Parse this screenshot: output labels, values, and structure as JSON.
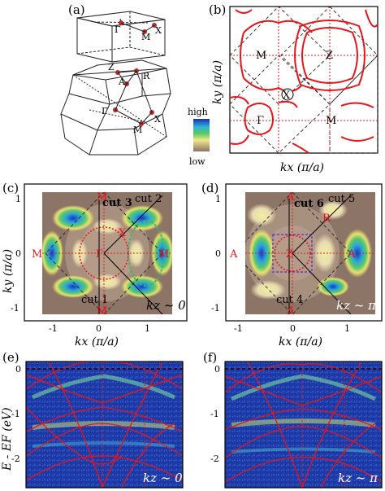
{
  "panels": {
    "a": {
      "label": "(a)"
    },
    "b": {
      "label": "(b)"
    },
    "c": {
      "label": "(c)"
    },
    "d": {
      "label": "(d)"
    },
    "e": {
      "label": "(e)"
    },
    "f": {
      "label": "(f)"
    }
  },
  "bz": {
    "top_points": [
      "Γ",
      "M",
      "X"
    ],
    "bottom_points": [
      "Z",
      "R",
      "A",
      "Γ",
      "M",
      "X"
    ]
  },
  "colorbar": {
    "high": "high",
    "low": "low"
  },
  "panel_b": {
    "xlabel": "kx (π/a)",
    "ylabel": "ky (π/a)",
    "points": [
      "M",
      "Z",
      "X",
      "Γ",
      "M"
    ]
  },
  "panel_c": {
    "points": [
      "M",
      "M",
      "M",
      "M",
      "X",
      "Γ"
    ],
    "cuts": [
      "cut 3",
      "cut 2",
      "cut 1"
    ],
    "kz": "kz ~ 0",
    "xlabel": "kx (π/a)",
    "ylabel": "ky (π/a)",
    "x_ticks": [
      "-1",
      "0",
      "1"
    ],
    "y_ticks": [
      "1",
      "0",
      "-1"
    ]
  },
  "panel_d": {
    "points": [
      "A",
      "A",
      "A",
      "A",
      "R",
      "Z"
    ],
    "cuts": [
      "cut 6",
      "cut 5",
      "cut 4"
    ],
    "kz": "kz ~ π",
    "xlabel": "kx (π/a)",
    "x_ticks": [
      "-1",
      "0",
      "1"
    ],
    "y_ticks": [
      "1",
      "0",
      "-1"
    ]
  },
  "panel_e": {
    "kz": "kz ~ 0",
    "ylabel": "E - EF (eV)",
    "y_ticks": [
      "0",
      "-1",
      "-2"
    ]
  },
  "panel_f": {
    "kz": "kz ~ π",
    "y_ticks": [
      "0",
      "-1",
      "-2"
    ]
  },
  "colors": {
    "bands": "#e8141a",
    "map_high": "#1a3cc8",
    "map_low": "#8a7468"
  }
}
